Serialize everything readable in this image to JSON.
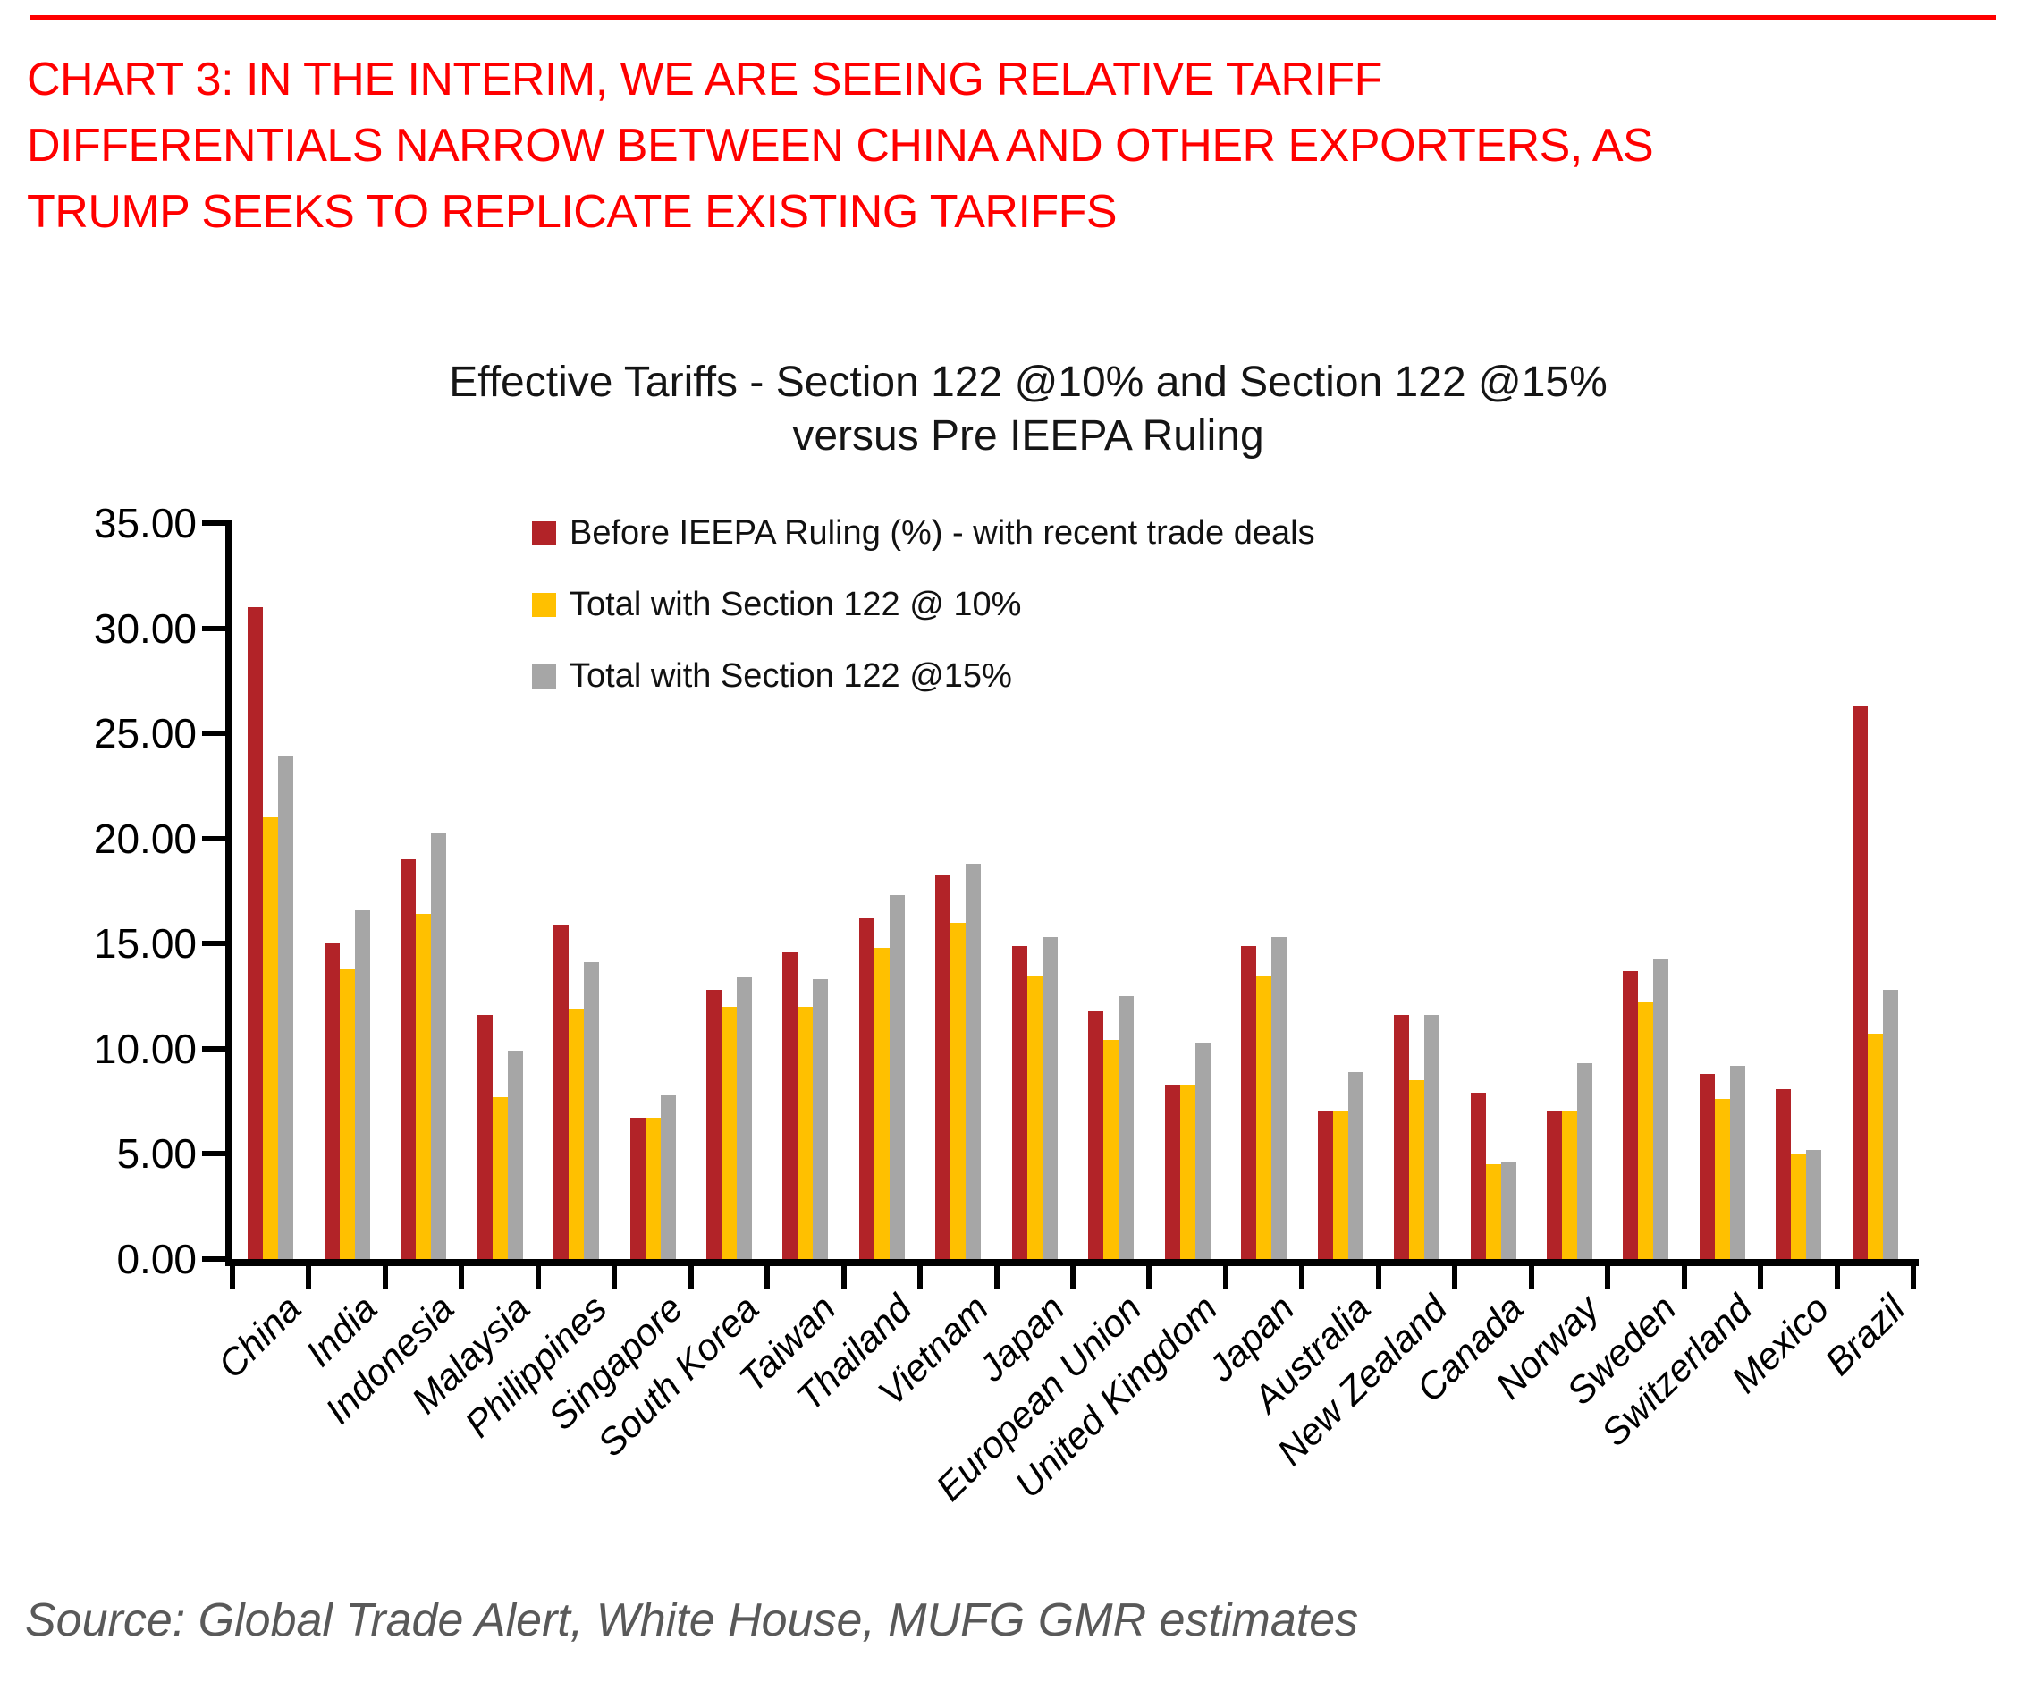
{
  "header": {
    "lines": [
      "CHART 3: IN THE INTERIM, WE ARE SEEING RELATIVE TARIFF",
      "DIFFERENTIALS NARROW BETWEEN CHINA AND OTHER EXPORTERS, AS",
      "TRUMP SEEKS TO REPLICATE EXISTING TARIFFS"
    ],
    "accent_color": "#ff0000"
  },
  "chart_data": {
    "type": "bar",
    "title_lines": [
      "Effective Tariffs - Section 122 @10% and Section 122 @15%",
      "versus Pre IEEPA Ruling"
    ],
    "categories": [
      "China",
      "India",
      "Indonesia",
      "Malaysia",
      "Philippines",
      "Singapore",
      "South Korea",
      "Taiwan",
      "Thailand",
      "Vietnam",
      "Japan",
      "European Union",
      "United Kingdom",
      "Japan",
      "Australia",
      "New Zealand",
      "Canada",
      "Norway",
      "Sweden",
      "Switzerland",
      "Mexico",
      "Brazil"
    ],
    "series": [
      {
        "name": "Before IEEPA Ruling (%) - with recent trade deals",
        "color": "#b22328",
        "values": [
          31.0,
          15.0,
          19.0,
          11.6,
          15.9,
          6.7,
          12.8,
          14.6,
          16.2,
          18.3,
          14.9,
          11.8,
          8.3,
          14.9,
          7.0,
          11.6,
          7.9,
          7.0,
          13.7,
          8.8,
          8.1,
          26.3
        ]
      },
      {
        "name": "Total with Section 122 @ 10%",
        "color": "#ffc000",
        "values": [
          21.0,
          13.8,
          16.4,
          7.7,
          11.9,
          6.7,
          12.0,
          12.0,
          14.8,
          16.0,
          13.5,
          10.4,
          8.3,
          13.5,
          7.0,
          8.5,
          4.5,
          7.0,
          12.2,
          7.6,
          5.0,
          10.7
        ]
      },
      {
        "name": "Total with Section 122 @15%",
        "color": "#a6a6a6",
        "values": [
          23.9,
          16.6,
          20.3,
          9.9,
          14.1,
          7.8,
          13.4,
          13.3,
          17.3,
          18.8,
          15.3,
          12.5,
          10.3,
          15.3,
          8.9,
          11.6,
          4.6,
          9.3,
          14.3,
          9.2,
          5.2,
          12.8
        ]
      }
    ],
    "ylim": [
      0,
      35
    ],
    "y_tick_step": 5,
    "y_tick_labels": [
      "0.00",
      "5.00",
      "10.00",
      "15.00",
      "20.00",
      "25.00",
      "30.00",
      "35.00"
    ],
    "grid": false,
    "legend_position": "top-inside-left"
  },
  "source": "Source: Global Trade Alert, White House, MUFG GMR estimates"
}
